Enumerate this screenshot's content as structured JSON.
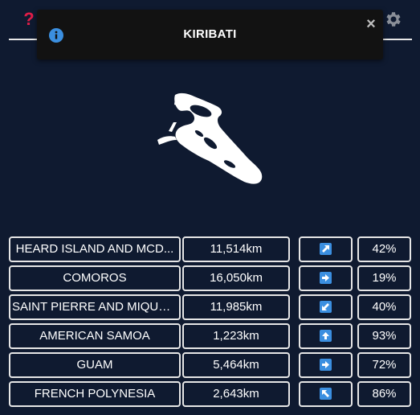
{
  "header": {
    "help_icon": "question-mark-icon",
    "help_glyph": "?",
    "settings_icon": "gear-icon"
  },
  "toast": {
    "title": "KIRIBATI",
    "info_icon": "info-icon",
    "close_glyph": "×"
  },
  "silhouette": {
    "country": "kiribati-outline"
  },
  "guesses": [
    {
      "name": "HEARD ISLAND AND MCD...",
      "distance": "11,514km",
      "direction": "north-east",
      "percent": "42%"
    },
    {
      "name": "COMOROS",
      "distance": "16,050km",
      "direction": "east",
      "percent": "19%"
    },
    {
      "name": "SAINT PIERRE AND MIQUEL...",
      "distance": "11,985km",
      "direction": "south-west",
      "percent": "40%"
    },
    {
      "name": "AMERICAN SAMOA",
      "distance": "1,223km",
      "direction": "north",
      "percent": "93%"
    },
    {
      "name": "GUAM",
      "distance": "5,464km",
      "direction": "east",
      "percent": "72%"
    },
    {
      "name": "FRENCH POLYNESIA",
      "distance": "2,643km",
      "direction": "north-west",
      "percent": "86%"
    }
  ],
  "colors": {
    "background": "#0f1a30",
    "accent_red": "#e11d48",
    "arrow_blue": "#3b8fe0",
    "toast_bg": "#121212"
  }
}
